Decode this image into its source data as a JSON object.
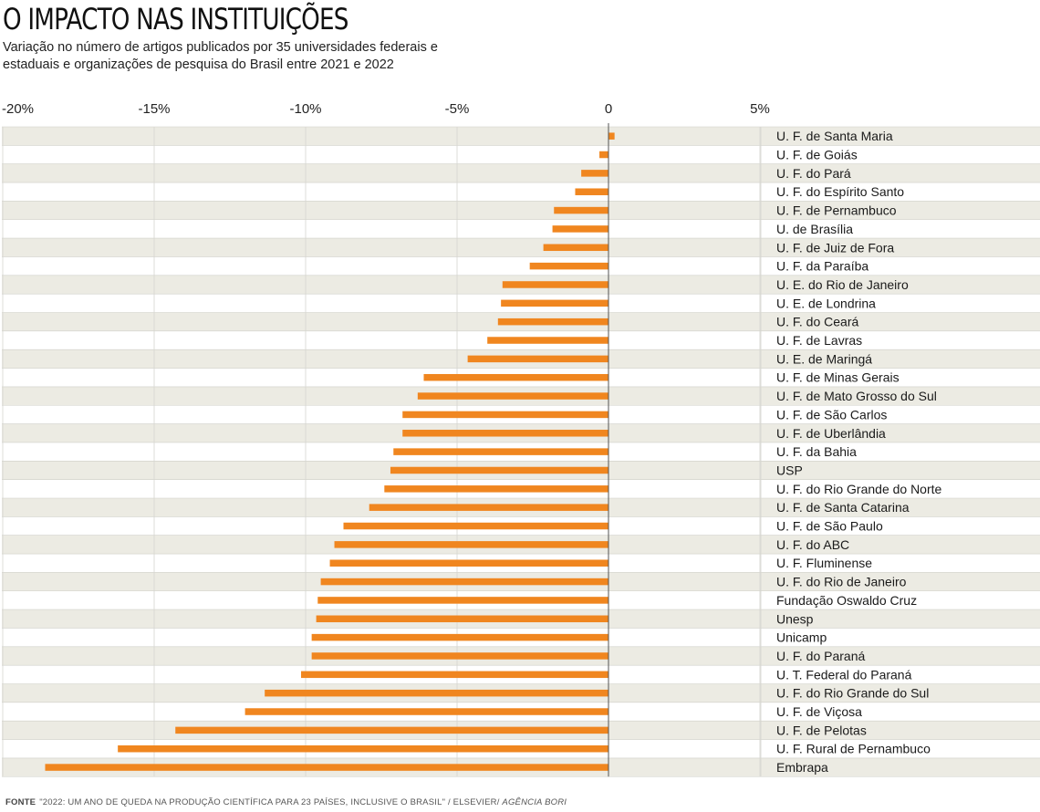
{
  "header": {
    "title": "O IMPACTO NAS INSTITUIÇÕES",
    "subtitle": "Variação no número de artigos publicados por 35 universidades federais e estaduais e organizações de pesquisa do Brasil entre 2021 e 2022"
  },
  "footer": {
    "source_label": "FONTE",
    "source_text": "\"2022: UM ANO DE QUEDA NA PRODUÇÃO CIENTÍFICA PARA 23 PAÍSES, INCLUSIVE O BRASIL\" / ELSEVIER/",
    "source_agency": "AGÊNCIA BORI"
  },
  "chart_data": {
    "type": "bar",
    "orientation": "horizontal",
    "title": "O IMPACTO NAS INSTITUIÇÕES",
    "subtitle": "Variação no número de artigos publicados por 35 universidades federais e estaduais e organizações de pesquisa do Brasil entre 2021 e 2022",
    "xlim": [
      -20,
      5
    ],
    "ticks": [
      {
        "value": -20,
        "label": "-20%"
      },
      {
        "value": -15,
        "label": "-15%"
      },
      {
        "value": -10,
        "label": "-10%"
      },
      {
        "value": -5,
        "label": "-5%"
      },
      {
        "value": 0,
        "label": "0"
      },
      {
        "value": 5,
        "label": "5%"
      }
    ],
    "grid": true,
    "bar_color": "#f0861f",
    "stripe_color": "#ecebe3",
    "categories": [
      "U. F. de Santa Maria",
      "U. F. de Goiás",
      "U. F. do Pará",
      "U. F. do Espírito Santo",
      "U. F. de Pernambuco",
      "U. de Brasília",
      "U. F. de Juiz de Fora",
      "U. F. da Paraíba",
      "U. E. do Rio de Janeiro",
      "U. E. de Londrina",
      "U. F. do Ceará",
      "U. F. de Lavras",
      "U. E. de Maringá",
      "U. F. de Minas Gerais",
      "U. F. de Mato Grosso do Sul",
      "U. F. de São Carlos",
      "U. F. de Uberlândia",
      "U. F. da Bahia",
      "USP",
      "U. F. do Rio Grande do Norte",
      "U. F. de Santa Catarina",
      "U. F. de São Paulo",
      "U. F. do ABC",
      "U. F. Fluminense",
      "U. F. do Rio de Janeiro",
      "Fundação Oswaldo Cruz",
      "Unesp",
      "Unicamp",
      "U. F. do Paraná",
      "U. T. Federal do Paraná",
      "U. F. do Rio Grande do Sul",
      "U. F. de Viçosa",
      "U. F. de Pelotas",
      "U. F. Rural de Pernambuco",
      "Embrapa"
    ],
    "values": [
      0.2,
      -0.3,
      -0.9,
      -1.1,
      -1.8,
      -1.85,
      -2.15,
      -2.6,
      -3.5,
      -3.55,
      -3.65,
      -4.0,
      -4.65,
      -6.1,
      -6.3,
      -6.8,
      -6.8,
      -7.1,
      -7.2,
      -7.4,
      -7.9,
      -8.75,
      -9.05,
      -9.2,
      -9.5,
      -9.6,
      -9.65,
      -9.8,
      -9.8,
      -10.15,
      -11.35,
      -12.0,
      -14.3,
      -16.2,
      -18.6
    ]
  }
}
